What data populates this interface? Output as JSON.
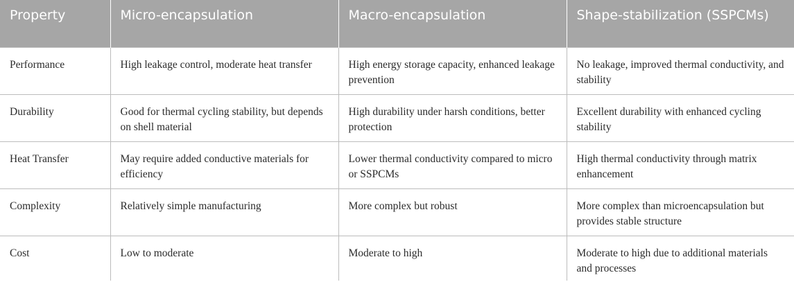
{
  "table": {
    "headers": [
      "Property",
      "Micro-encapsulation",
      "Macro-encapsulation",
      "Shape-stabilization (SSPCMs)"
    ],
    "rows": [
      [
        "Performance",
        "High leakage control, moderate heat transfer",
        "High energy storage capacity, enhanced leakage prevention",
        "No leakage, improved thermal conductivity, and stability"
      ],
      [
        "Durability",
        "Good for thermal cycling stability, but depends on shell material",
        "High durability under harsh conditions, better protection",
        "Excellent durability with enhanced cycling stability"
      ],
      [
        "Heat Transfer",
        "May require added conductive materials for efficiency",
        "Lower thermal conductivity compared to micro or SSPCMs",
        "High thermal conductivity through matrix enhancement"
      ],
      [
        "Complexity",
        "Relatively simple manufacturing",
        "More complex but robust",
        "More complex than microencapsulation but provides stable structure"
      ],
      [
        "Cost",
        "Low to moderate",
        "Moderate to high",
        "Moderate to high due to additional materials and processes"
      ]
    ]
  }
}
